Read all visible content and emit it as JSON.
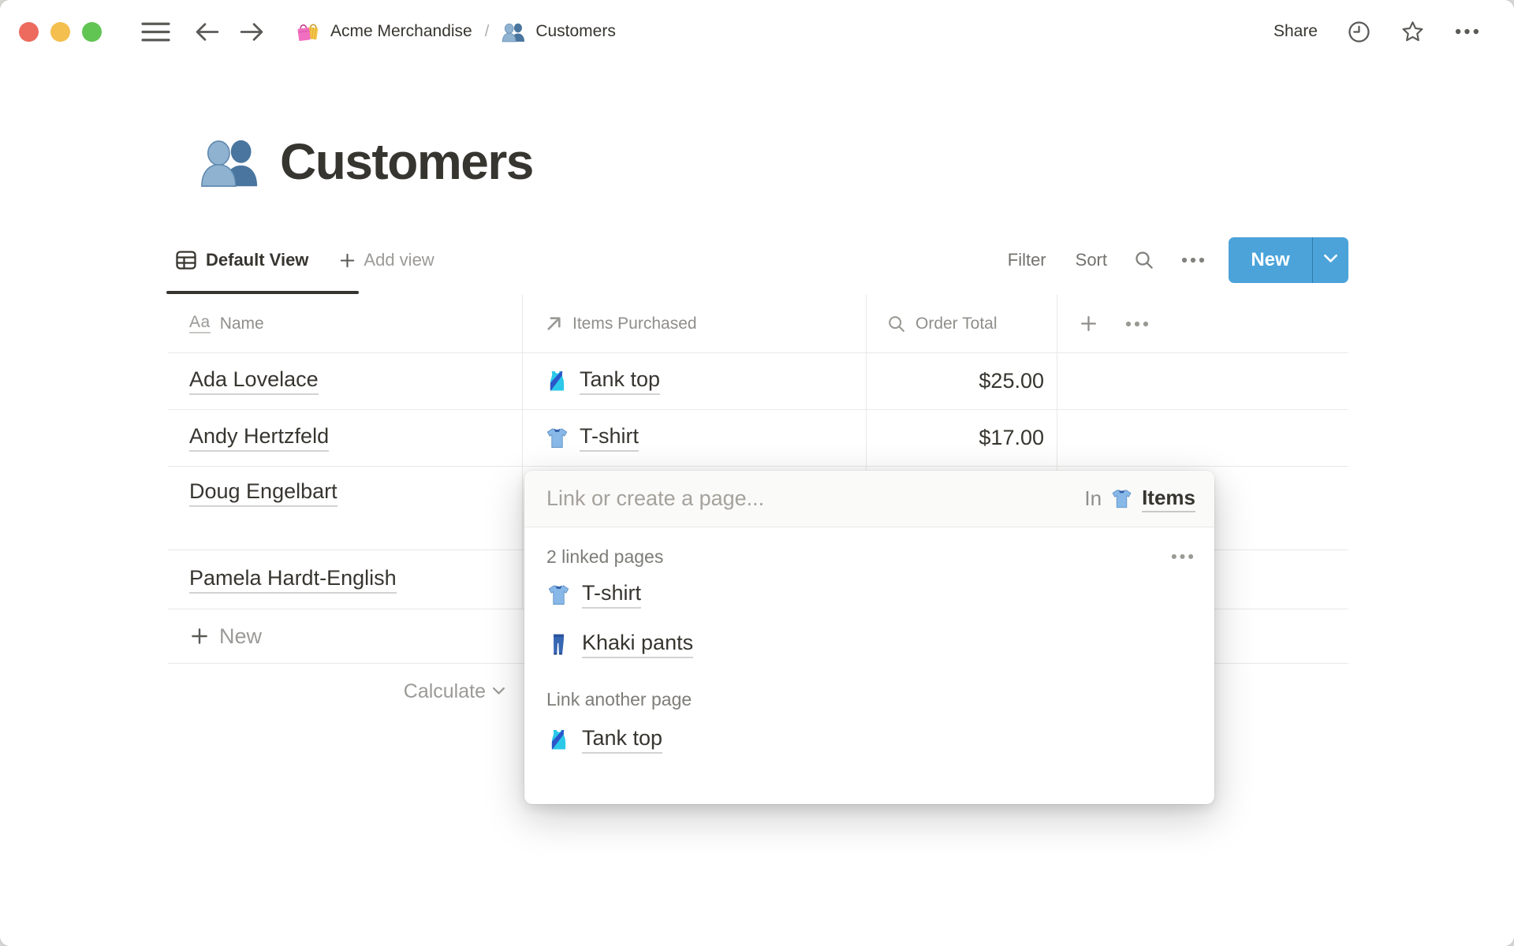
{
  "topbar": {
    "workspace": "Acme Merchandise",
    "workspace_icon": "shopping-bags-icon",
    "separator": "/",
    "page": "Customers",
    "page_icon": "people-icon",
    "share": "Share",
    "right_icons": [
      "clock-icon",
      "star-icon",
      "more-icon"
    ]
  },
  "title": {
    "text": "Customers",
    "icon": "people-icon"
  },
  "toolbar": {
    "default_view": "Default View",
    "default_view_icon": "table-view-icon",
    "add_view": "Add view",
    "filter": "Filter",
    "sort": "Sort",
    "icons": [
      "search-icon",
      "more-icon"
    ],
    "new_label": "New"
  },
  "table": {
    "columns": [
      {
        "icon_label": "Aa",
        "icon": "text-property-icon",
        "label": "Name"
      },
      {
        "icon": "relation-arrow-icon",
        "label": "Items Purchased"
      },
      {
        "icon": "rollup-magnifier-icon",
        "label": "Order Total"
      }
    ],
    "rows": [
      {
        "name": "Ada Lovelace",
        "item": "Tank top",
        "item_icon": "tank-top-icon",
        "total": "$25.00"
      },
      {
        "name": "Andy Hertzfeld",
        "item": "T-shirt",
        "item_icon": "t-shirt-icon",
        "total": "$17.00"
      },
      {
        "name": "Doug Engelbart",
        "item": "",
        "total": ""
      },
      {
        "name": "Pamela Hardt-English",
        "item": "",
        "total": ""
      }
    ],
    "new_label": "New",
    "calculate_label": "Calculate"
  },
  "popup": {
    "placeholder": "Link or create a page...",
    "in_label": "In",
    "in_icon": "t-shirt-icon",
    "in_page": "Items",
    "linked_header": "2 linked pages",
    "pages": [
      {
        "icon": "t-shirt-icon",
        "label": "T-shirt"
      },
      {
        "icon": "jeans-icon",
        "label": "Khaki pants"
      }
    ],
    "another_header": "Link another page",
    "suggestions": [
      {
        "icon": "tank-top-icon",
        "label": "Tank top"
      }
    ]
  },
  "colors": {
    "accent_blue": "#4BA3DA",
    "text_dark": "#37352F",
    "text_gray": "#9B9A97",
    "border": "#E9E9E7"
  }
}
